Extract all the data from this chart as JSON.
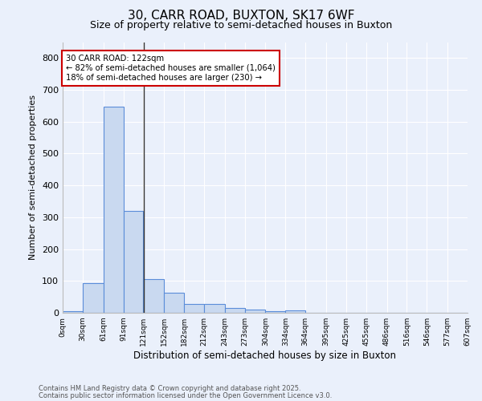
{
  "title1": "30, CARR ROAD, BUXTON, SK17 6WF",
  "title2": "Size of property relative to semi-detached houses in Buxton",
  "xlabel": "Distribution of semi-detached houses by size in Buxton",
  "ylabel": "Number of semi-detached properties",
  "footer1": "Contains HM Land Registry data © Crown copyright and database right 2025.",
  "footer2": "Contains public sector information licensed under the Open Government Licence v3.0.",
  "annotation_title": "30 CARR ROAD: 122sqm",
  "annotation_line1": "← 82% of semi-detached houses are smaller (1,064)",
  "annotation_line2": "18% of semi-detached houses are larger (230) →",
  "property_size": 122,
  "bar_values": [
    5,
    92,
    648,
    320,
    105,
    63,
    28,
    28,
    15,
    10,
    5,
    8,
    0,
    0,
    0,
    0,
    0,
    0,
    0,
    0
  ],
  "bin_edges": [
    0,
    30,
    61,
    91,
    121,
    152,
    182,
    212,
    243,
    273,
    304,
    334,
    364,
    395,
    425,
    455,
    486,
    516,
    546,
    577,
    607
  ],
  "bin_labels": [
    "0sqm",
    "30sqm",
    "61sqm",
    "91sqm",
    "121sqm",
    "152sqm",
    "182sqm",
    "212sqm",
    "243sqm",
    "273sqm",
    "304sqm",
    "334sqm",
    "364sqm",
    "395sqm",
    "425sqm",
    "455sqm",
    "486sqm",
    "516sqm",
    "546sqm",
    "577sqm",
    "607sqm"
  ],
  "bar_color": "#c9d9f0",
  "bar_edge_color": "#5b8dd9",
  "vline_x": 122,
  "vline_color": "#333333",
  "background_color": "#eaf0fb",
  "plot_bg_color": "#eaf0fb",
  "grid_color": "#ffffff",
  "ylim": [
    0,
    850
  ],
  "yticks": [
    0,
    100,
    200,
    300,
    400,
    500,
    600,
    700,
    800
  ],
  "annotation_box_color": "#cc0000",
  "annotation_box_fill": "#ffffff"
}
